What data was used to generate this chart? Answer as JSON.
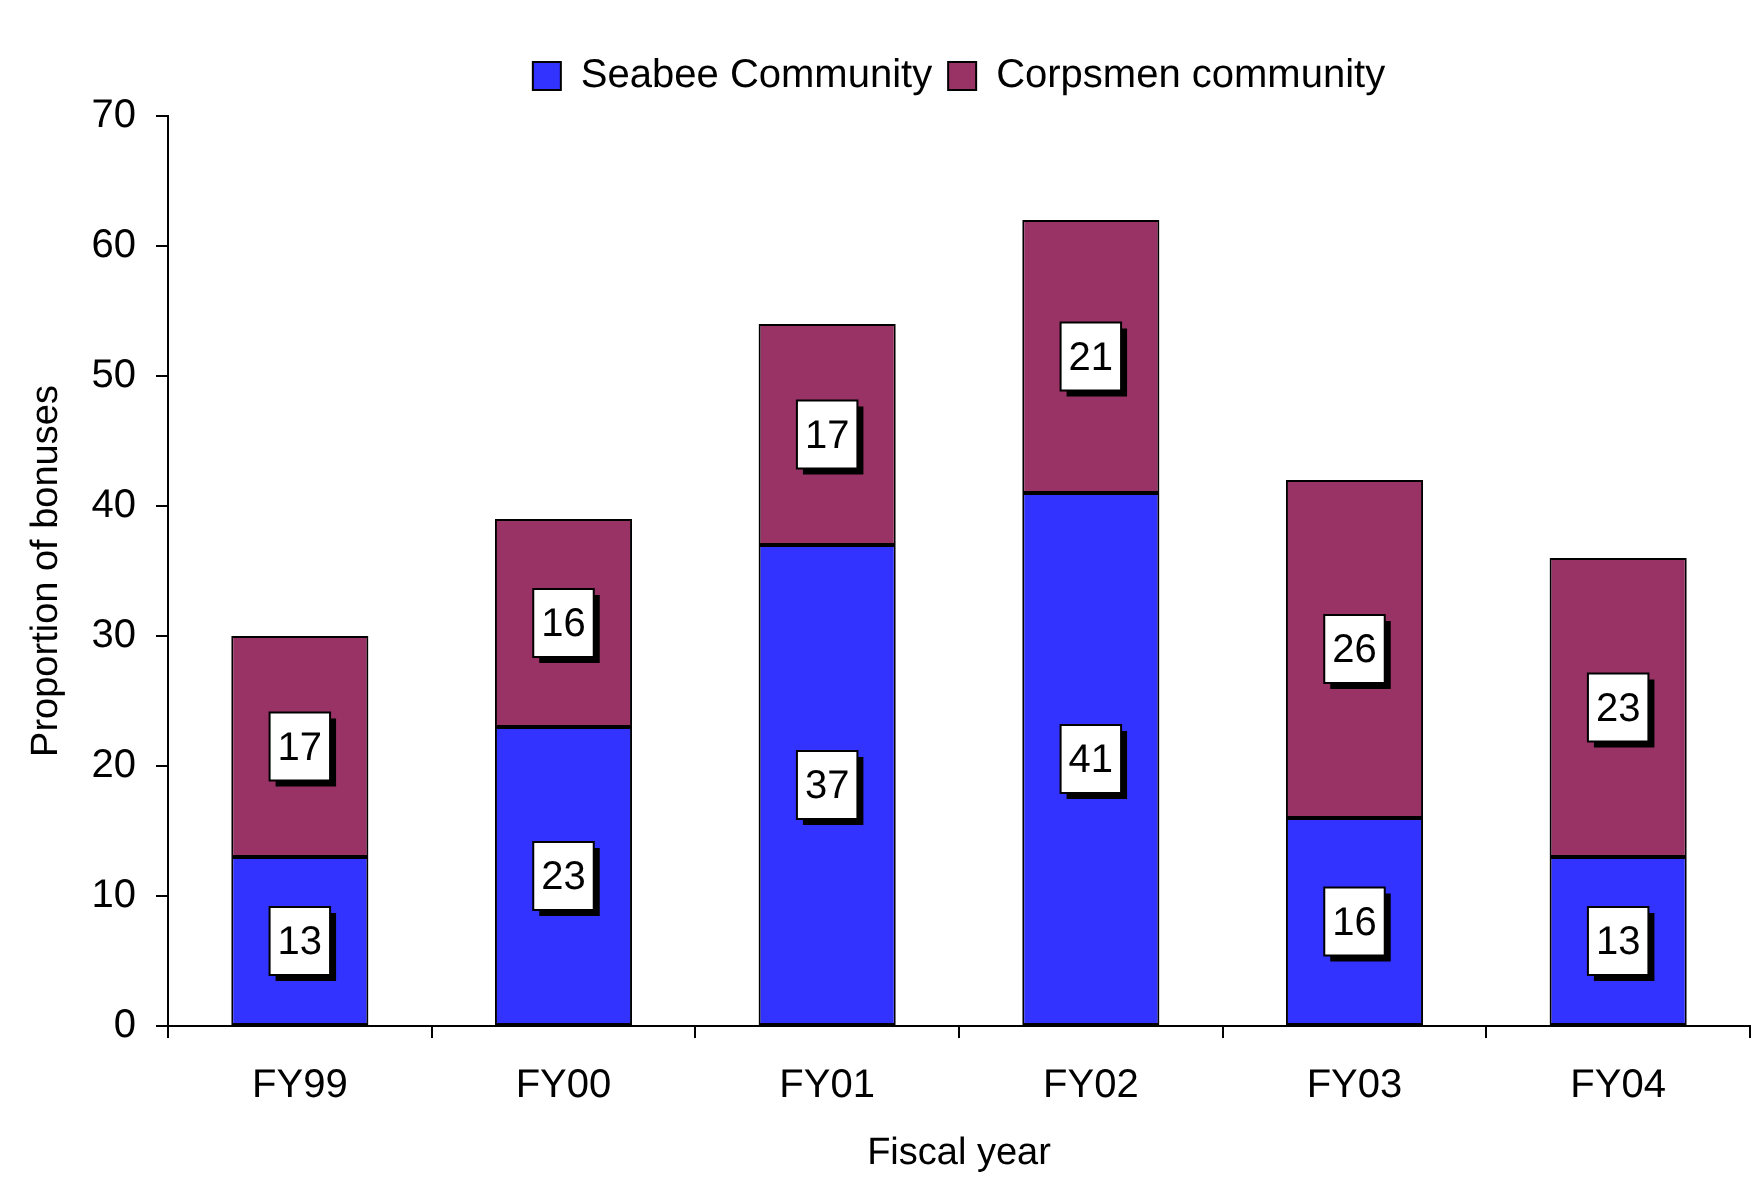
{
  "chart_data": {
    "type": "bar",
    "stacked": true,
    "categories": [
      "FY99",
      "FY00",
      "FY01",
      "FY02",
      "FY03",
      "FY04"
    ],
    "series": [
      {
        "name": "Seabee Community",
        "color": "#3333ff",
        "values": [
          13,
          23,
          37,
          41,
          16,
          13
        ]
      },
      {
        "name": "Corpsmen community",
        "color": "#993366",
        "values": [
          17,
          16,
          17,
          21,
          26,
          23
        ]
      }
    ],
    "xlabel": "Fiscal year",
    "ylabel": "Proportion of bonuses",
    "ylim": [
      0,
      70
    ],
    "yticks": [
      0,
      10,
      20,
      30,
      40,
      50,
      60,
      70
    ],
    "legend": "top",
    "data_labels": true
  }
}
